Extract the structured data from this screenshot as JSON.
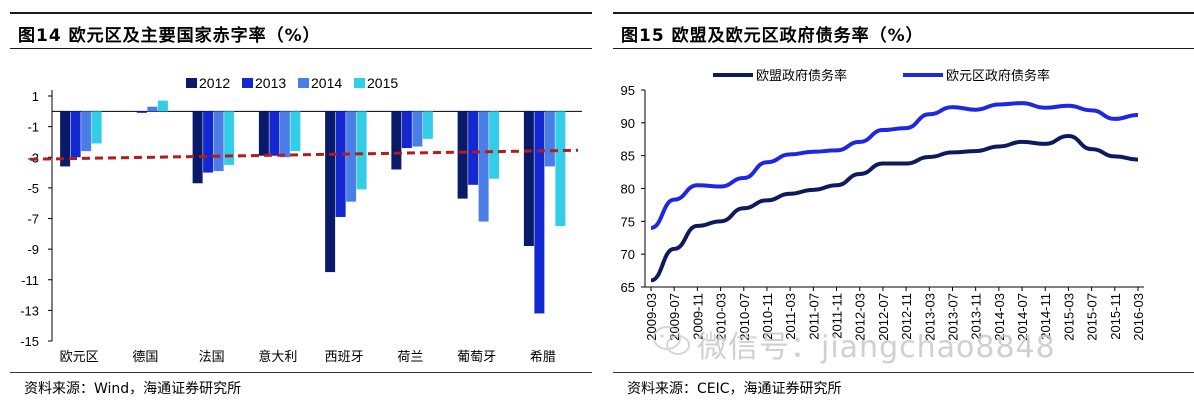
{
  "chart_data": [
    {
      "type": "bar",
      "title": "图14 欧元区及主要国家赤字率（%）",
      "categories": [
        "欧元区",
        "德国",
        "法国",
        "意大利",
        "西班牙",
        "荷兰",
        "葡萄牙",
        "希腊"
      ],
      "series": [
        {
          "name": "2012",
          "color": "#0a1a6b",
          "values": [
            -3.6,
            0.0,
            -4.7,
            -2.9,
            -10.5,
            -3.8,
            -5.7,
            -8.8
          ]
        },
        {
          "name": "2013",
          "color": "#1428d2",
          "values": [
            -3.0,
            -0.1,
            -4.0,
            -2.9,
            -6.9,
            -2.4,
            -4.8,
            -13.2
          ]
        },
        {
          "name": "2014",
          "color": "#4a7ee6",
          "values": [
            -2.6,
            0.3,
            -3.9,
            -3.0,
            -5.9,
            -2.3,
            -7.2,
            -3.6
          ]
        },
        {
          "name": "2015",
          "color": "#33cde8",
          "values": [
            -2.1,
            0.7,
            -3.5,
            -2.6,
            -5.1,
            -1.8,
            -4.4,
            -7.5
          ]
        }
      ],
      "reference_line": {
        "value": -3,
        "style": "dashed",
        "color": "#b31c1c"
      },
      "ylim": [
        -15,
        1
      ],
      "yticks": [
        1,
        -1,
        -3,
        -5,
        -7,
        -9,
        -11,
        -13,
        -15
      ],
      "source": "资料来源：Wind，海通证券研究所"
    },
    {
      "type": "line",
      "title": "图15 欧盟及欧元区政府债务率（%）",
      "x": [
        "2009-03",
        "2009-07",
        "2009-11",
        "2010-03",
        "2010-07",
        "2010-11",
        "2011-03",
        "2011-07",
        "2011-11",
        "2012-03",
        "2012-07",
        "2012-11",
        "2013-03",
        "2013-07",
        "2013-11",
        "2014-03",
        "2014-07",
        "2014-11",
        "2015-03",
        "2015-07",
        "2015-11",
        "2016-03"
      ],
      "xticklabels": [
        "2009-03",
        "2009-07",
        "2009-11",
        "2010-03",
        "2010-07",
        "2010-11",
        "2011-03",
        "2011-07",
        "2011-11",
        "2012-03",
        "2012-07",
        "2012-11",
        "2013-03",
        "2013-07",
        "2013-11",
        "2014-03",
        "2014-07",
        "2014-11",
        "2015-03",
        "2015-07",
        "2015-11",
        "2016-03"
      ],
      "series": [
        {
          "name": "欧盟政府债务率",
          "color": "#0d1a5e",
          "values": [
            66.0,
            70.8,
            74.3,
            75.0,
            77.0,
            78.2,
            79.2,
            79.8,
            80.5,
            82.2,
            83.8,
            83.8,
            84.8,
            85.5,
            85.7,
            86.4,
            87.1,
            86.8,
            88.0,
            86.0,
            84.9,
            84.4
          ]
        },
        {
          "name": "欧元区政府债务率",
          "color": "#1e28e0",
          "values": [
            74.0,
            78.3,
            80.5,
            80.3,
            81.6,
            84.0,
            85.2,
            85.6,
            85.8,
            87.1,
            88.9,
            89.2,
            91.3,
            92.4,
            92.0,
            92.8,
            93.0,
            92.3,
            92.6,
            91.9,
            90.6,
            91.2
          ]
        }
      ],
      "ylim": [
        65,
        95
      ],
      "yticks": [
        95,
        90,
        85,
        80,
        75,
        70,
        65
      ],
      "source": "资料来源：CEIC，海通证券研究所"
    }
  ],
  "watermark": "微信号：jiangchao8848"
}
